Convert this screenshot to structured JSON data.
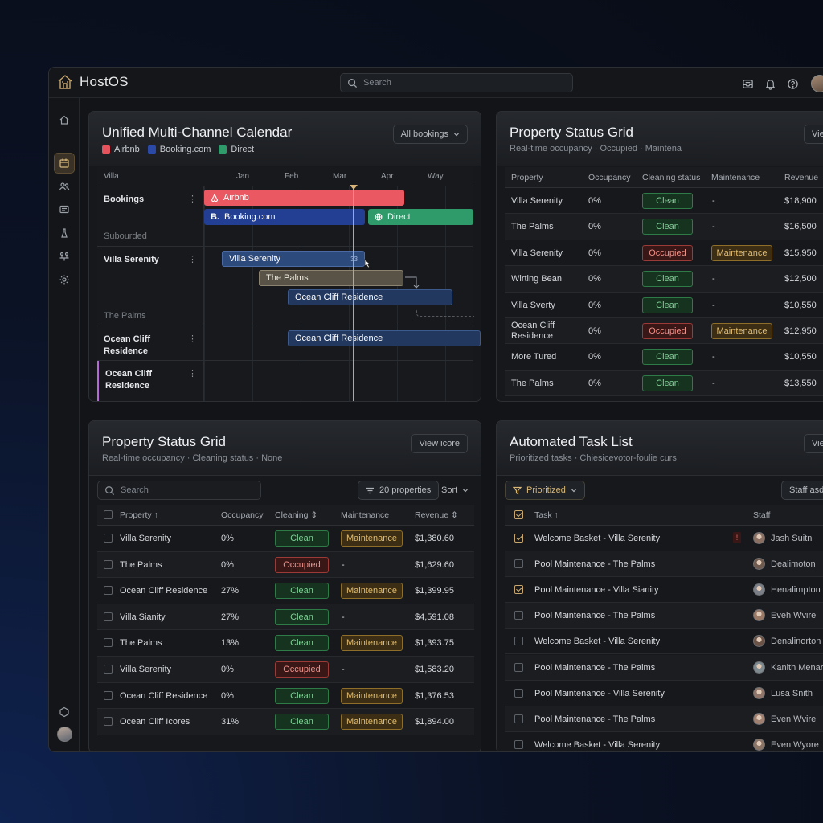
{
  "app": {
    "name": "HostOS"
  },
  "topbar": {
    "search_placeholder": "Search"
  },
  "calendar": {
    "title": "Unified Multi-Channel Calendar",
    "filter_label": "All bookings",
    "legend": [
      {
        "label": "Airbnb",
        "color": "#e5545d"
      },
      {
        "label": "Booking.com",
        "color": "#2b4aa8"
      },
      {
        "label": "Direct",
        "color": "#2f9a6a"
      }
    ],
    "column_header": "Villa",
    "months": [
      "Jan",
      "Feb",
      "Mar",
      "Apr",
      "Way"
    ],
    "rows": [
      {
        "name": "Bookings",
        "sub": "Subourded"
      },
      {
        "name": "Villa Serenity",
        "sub": "The Palms"
      },
      {
        "name": "Ocean Cliff Residence",
        "sub": ""
      },
      {
        "name": "Ocean Cliff Residence",
        "sub": ""
      }
    ],
    "bars": {
      "airbnb": "Airbnb",
      "booking": "Booking.com",
      "direct": "Direct",
      "villa_serenity": "Villa Serenity",
      "villa_serenity_badge": "33",
      "the_palms": "The Palms",
      "ocean_cliff_1": "Ocean Cliff Residence",
      "ocean_cliff_2": "Ocean Cliff Residence"
    }
  },
  "status_grid_top": {
    "title": "Property Status Grid",
    "subtitle": "Real-time occupancy · Occupied · Maintena",
    "view_button": "Vie",
    "headers": {
      "property": "Property",
      "occupancy": "Occupancy",
      "cleaning": "Cleaning status",
      "maintenance": "Maintenance",
      "revenue": "Revenue"
    },
    "rows": [
      {
        "property": "Villa Serenity",
        "occupancy": "0%",
        "cleaning": "Clean",
        "maintenance": "-",
        "revenue": "$18,900"
      },
      {
        "property": "The Palms",
        "occupancy": "0%",
        "cleaning": "Clean",
        "maintenance": "-",
        "revenue": "$16,500"
      },
      {
        "property": "Villa Serenity",
        "occupancy": "0%",
        "cleaning": "Occupied",
        "maintenance": "Maintenance",
        "revenue": "$15,950"
      },
      {
        "property": "Wirting Bean",
        "occupancy": "0%",
        "cleaning": "Clean",
        "maintenance": "-",
        "revenue": "$12,500"
      },
      {
        "property": "Villa Sverty",
        "occupancy": "0%",
        "cleaning": "Clean",
        "maintenance": "-",
        "revenue": "$10,550"
      },
      {
        "property": "Ocean Cliff Residence",
        "occupancy": "0%",
        "cleaning": "Occupied",
        "maintenance": "Maintenance",
        "revenue": "$12,950"
      },
      {
        "property": "More Tured",
        "occupancy": "0%",
        "cleaning": "Clean",
        "maintenance": "-",
        "revenue": "$10,550"
      },
      {
        "property": "The Palms",
        "occupancy": "0%",
        "cleaning": "Clean",
        "maintenance": "-",
        "revenue": "$13,550"
      }
    ]
  },
  "status_grid_bottom": {
    "title": "Property Status Grid",
    "subtitle": "Real-time occupancy · Cleaning status · None",
    "view_button": "View icore",
    "search_placeholder": "Search",
    "properties_button": "20 properties",
    "sort_label": "Sort",
    "headers": {
      "property": "Property",
      "occupancy": "Occupancy",
      "cleaning": "Cleaning",
      "maintenance": "Maintenance",
      "revenue": "Revenue"
    },
    "rows": [
      {
        "property": "Villa Serenity",
        "occupancy": "0%",
        "cleaning": "Clean",
        "maintenance": "Maintenance",
        "revenue": "$1,380.60"
      },
      {
        "property": "The Palms",
        "occupancy": "0%",
        "cleaning": "Occupied",
        "maintenance": "-",
        "revenue": "$1,629.60"
      },
      {
        "property": "Ocean Cliff Residence",
        "occupancy": "27%",
        "cleaning": "Clean",
        "maintenance": "Maintenance",
        "revenue": "$1,399.95"
      },
      {
        "property": "Villa Sianity",
        "occupancy": "27%",
        "cleaning": "Clean",
        "maintenance": "-",
        "revenue": "$4,591.08"
      },
      {
        "property": "The Palms",
        "occupancy": "13%",
        "cleaning": "Clean",
        "maintenance": "Maintenance",
        "revenue": "$1,393.75"
      },
      {
        "property": "Villa Serenity",
        "occupancy": "0%",
        "cleaning": "Occupied",
        "maintenance": "-",
        "revenue": "$1,583.20"
      },
      {
        "property": "Ocean Cliff Residence",
        "occupancy": "0%",
        "cleaning": "Clean",
        "maintenance": "Maintenance",
        "revenue": "$1,376.53"
      },
      {
        "property": "Ocean Cliff Icores",
        "occupancy": "31%",
        "cleaning": "Clean",
        "maintenance": "Maintenance",
        "revenue": "$1,894.00"
      }
    ]
  },
  "tasks": {
    "title": "Automated Task List",
    "subtitle": "Prioritized tasks · Chiesicevotor-foulie curs",
    "view_button": "Vie",
    "filter_label": "Prioritized",
    "staff_button": "Staff asdi",
    "headers": {
      "task": "Task",
      "staff": "Staff"
    },
    "rows": [
      {
        "task": "Welcome Basket - Villa Serenity",
        "staff": "Jash Suitn",
        "checked": true,
        "flag": "!"
      },
      {
        "task": "Pool Maintenance - The Palms",
        "staff": "Dealimoton",
        "checked": false,
        "flag": ""
      },
      {
        "task": "Pool Maintenance - Villa Sianity",
        "staff": "Henalimpton",
        "checked": true,
        "flag": ""
      },
      {
        "task": "Pool Maintenance - The Palms",
        "staff": "Eveh Wvire",
        "checked": false,
        "flag": ""
      },
      {
        "task": "Welcome Basket - Villa Serenity",
        "staff": "Denalinorton",
        "checked": false,
        "flag": ""
      },
      {
        "task": "Pool Maintenance - The Palms",
        "staff": "Kanith Menar",
        "checked": false,
        "flag": ""
      },
      {
        "task": "Pool Maintenance - Villa Serenity",
        "staff": "Lusa Snith",
        "checked": false,
        "flag": ""
      },
      {
        "task": "Pool Maintenance - The Palms",
        "staff": "Even Wvire",
        "checked": false,
        "flag": ""
      },
      {
        "task": "Welcome Basket - Villa Serenity",
        "staff": "Even Wyore",
        "checked": false,
        "flag": ""
      }
    ]
  }
}
